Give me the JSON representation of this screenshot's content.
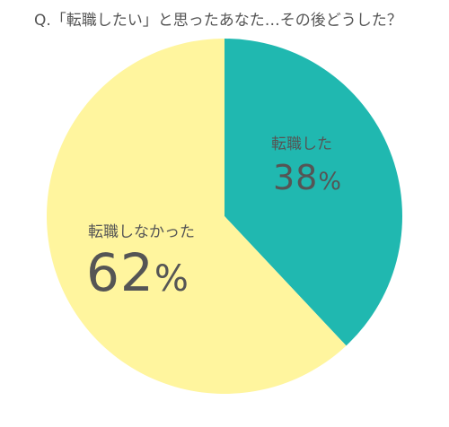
{
  "chart_data": {
    "type": "pie",
    "title": "Q.「転職したい」と思ったあなた…その後どうした？",
    "slices": [
      {
        "label": "転職した",
        "value": 38,
        "value_text": "38",
        "unit": "%",
        "color": "#20b8b0"
      },
      {
        "label": "転職しなかった",
        "value": 62,
        "value_text": "62",
        "unit": "%",
        "color": "#fff59e"
      }
    ],
    "start_angle": "12 o'clock",
    "direction": "clockwise",
    "legend": "none"
  }
}
